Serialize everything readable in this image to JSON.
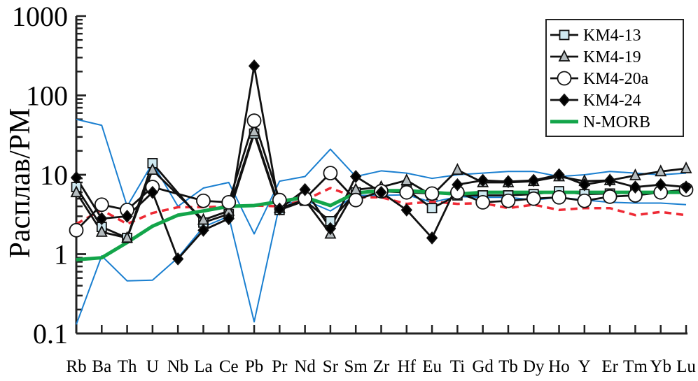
{
  "chart_data": {
    "type": "line",
    "ylabel": "Расплав/РМ",
    "xlabel": "",
    "yscale": "log",
    "ylim": [
      0.1,
      1000
    ],
    "yticks": [
      "0.1",
      "1",
      "10",
      "100",
      "1000"
    ],
    "grid": false,
    "legend_position": "top-right",
    "categories": [
      "Rb",
      "Ba",
      "Th",
      "U",
      "Nb",
      "La",
      "Ce",
      "Pb",
      "Pr",
      "Nd",
      "Sr",
      "Sm",
      "Zr",
      "Hf",
      "Eu",
      "Ti",
      "Gd",
      "Tb",
      "Dy",
      "Ho",
      "Y",
      "Er",
      "Tm",
      "Yb",
      "Lu"
    ],
    "series": [
      {
        "id": "upper",
        "color": "#1a7fd0",
        "style": "thin",
        "values": [
          50,
          42,
          4,
          14,
          4,
          6.8,
          8,
          1.8,
          8.3,
          9.5,
          21,
          9.5,
          11.2,
          10.5,
          9,
          10,
          10.5,
          11,
          11,
          9.5,
          10,
          11,
          10.5,
          10,
          10.5
        ]
      },
      {
        "id": "lower",
        "color": "#1a7fd0",
        "style": "thin",
        "values": [
          0.13,
          0.95,
          0.46,
          0.47,
          0.9,
          2.2,
          3,
          0.14,
          4.2,
          4.8,
          3.5,
          5.5,
          5.5,
          5.6,
          4.5,
          5.3,
          5.2,
          5.2,
          4.8,
          5.2,
          4.8,
          4.5,
          4.4,
          4.4,
          4.2
        ]
      },
      {
        "id": "dashed",
        "color": "#ee2a35",
        "style": "dashed",
        "values": [
          2.4,
          3.6,
          2.4,
          3.3,
          3.9,
          3.9,
          4,
          4.1,
          4,
          4.8,
          6.8,
          5.2,
          5.2,
          4.3,
          4.6,
          4.3,
          4.4,
          3.8,
          4.2,
          3.6,
          3.8,
          3.8,
          3.1,
          3.4,
          3.1
        ]
      },
      {
        "id": "km4-13",
        "name": "KM4-13",
        "marker": "square",
        "color": "#111111",
        "fill": "#cfe9f1",
        "values": [
          7,
          2.2,
          1.6,
          14,
          null,
          2.5,
          3.2,
          33,
          3.6,
          4.7,
          2.6,
          6,
          6,
          6.5,
          3.8,
          5.5,
          5.5,
          5.5,
          5.7,
          6.2,
          5.7,
          5.8,
          6,
          6,
          6.5
        ]
      },
      {
        "id": "km4-19",
        "name": "KM4-19",
        "marker": "triangle",
        "color": "#111111",
        "fill": "#b5bcbf",
        "values": [
          6,
          1.9,
          1.6,
          11.5,
          null,
          2.7,
          3.5,
          35,
          3.8,
          4.8,
          1.8,
          6.5,
          7,
          8.5,
          5.5,
          11.5,
          8,
          8,
          8.3,
          9.5,
          8.3,
          8.5,
          9.8,
          11,
          12
        ]
      },
      {
        "id": "km4-20a",
        "name": "KM4-20a",
        "marker": "circle",
        "color": "#111111",
        "fill": "#ffffff",
        "values": [
          2,
          4.2,
          3.6,
          7,
          null,
          4.7,
          4.5,
          48,
          4.8,
          5,
          10.5,
          4.8,
          6.2,
          6,
          5.8,
          6,
          4.5,
          4.7,
          5,
          5.2,
          4.7,
          5.3,
          5.5,
          6,
          6.5
        ]
      },
      {
        "id": "km4-24",
        "name": "KM4-24",
        "marker": "diamond",
        "color": "#111111",
        "fill": "#000000",
        "values": [
          9.2,
          2.8,
          3,
          6,
          0.87,
          2,
          2.8,
          235,
          3.7,
          6.5,
          2.1,
          9.5,
          6,
          3.6,
          1.6,
          7.5,
          8.5,
          8.2,
          8.5,
          10,
          7.5,
          8.5,
          7,
          7.5,
          7
        ]
      },
      {
        "id": "n-morb",
        "name": "N-MORB",
        "marker": "none",
        "color": "#13a54a",
        "style": "thick",
        "values": [
          0.85,
          0.9,
          1.4,
          2.25,
          3.1,
          3.5,
          4,
          4.1,
          4.6,
          5.2,
          4.1,
          5.9,
          6.3,
          6.3,
          6,
          5.7,
          6,
          6,
          6,
          6,
          6,
          6,
          6,
          6,
          6
        ]
      }
    ]
  }
}
